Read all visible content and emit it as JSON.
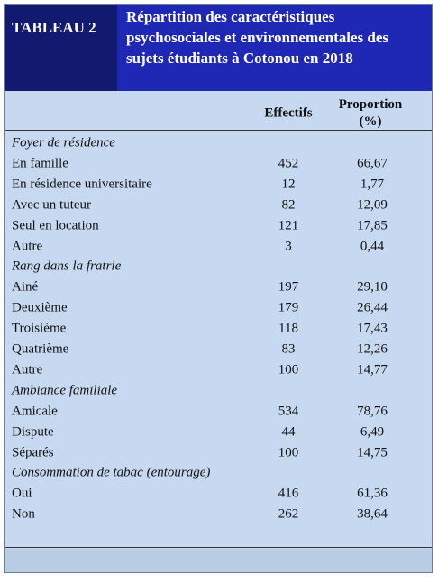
{
  "header": {
    "label": "TABLEAU 2",
    "title": "Répartition des caractéristiques psychosociales et environnementales des sujets étudiants à Cotonou en 2018"
  },
  "columns": [
    "Effectifs",
    "Proportion (%)"
  ],
  "groups": [
    {
      "label": "Foyer de résidence",
      "rows": [
        [
          "En famille",
          "452",
          "66,67"
        ],
        [
          "En résidence universitaire",
          "12",
          "1,77"
        ],
        [
          "Avec un tuteur",
          "82",
          "12,09"
        ],
        [
          "Seul en location",
          "121",
          "17,85"
        ],
        [
          "Autre",
          "3",
          "0,44"
        ]
      ]
    },
    {
      "label": "Rang dans la fratrie",
      "rows": [
        [
          "Ainé",
          "197",
          "29,10"
        ],
        [
          "Deuxième",
          "179",
          "26,44"
        ],
        [
          "Troisième",
          "118",
          "17,43"
        ],
        [
          "Quatrième",
          "83",
          "12,26"
        ],
        [
          "Autre",
          "100",
          "14,77"
        ]
      ]
    },
    {
      "label": "Ambiance familiale",
      "rows": [
        [
          "Amicale",
          "534",
          "78,76"
        ],
        [
          "Dispute",
          "44",
          "6,49"
        ],
        [
          "Séparés",
          "100",
          "14,75"
        ]
      ]
    },
    {
      "label": "Consommation de tabac (entourage)",
      "rows": [
        [
          "Oui",
          "416",
          "61,36"
        ],
        [
          "Non",
          "262",
          "38,64"
        ]
      ]
    }
  ]
}
